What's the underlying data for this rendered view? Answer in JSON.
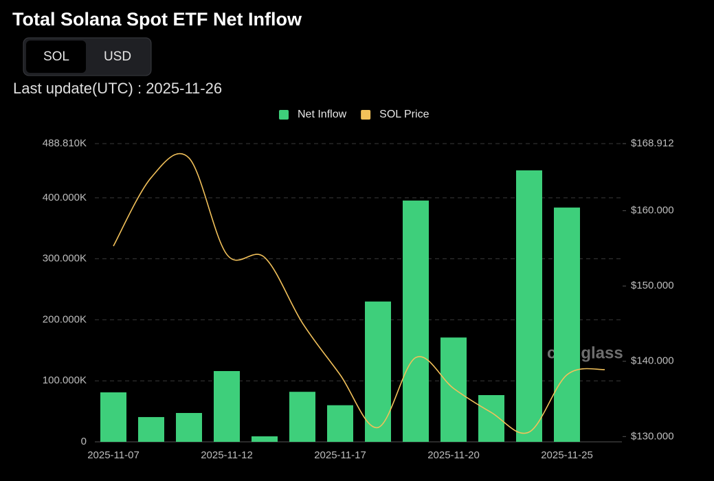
{
  "toggle": {
    "options": [
      "SOL",
      "USD"
    ],
    "selected": 0
  },
  "last_update": "Last update(UTC) : 2025-11-26",
  "chart_data": {
    "type": "bar",
    "title": "Total Solana Spot ETF Net Inflow",
    "watermark": "coinglass",
    "categories": [
      "2025-11-07",
      null,
      null,
      "2025-11-12",
      null,
      null,
      "2025-11-17",
      null,
      null,
      "2025-11-20",
      null,
      null,
      "2025-11-25",
      null
    ],
    "series": [
      {
        "name": "Net Inflow",
        "type": "bar",
        "color": "#3ecf7b",
        "values": [
          81100,
          40600,
          47300,
          116000,
          9000,
          82000,
          60000,
          230000,
          395500,
          171000,
          76600,
          445000,
          384000,
          null
        ]
      },
      {
        "name": "SOL Price",
        "type": "line",
        "axis": "y2",
        "color": "#f2c15a",
        "values": [
          155.3,
          164.4,
          167.0,
          154.2,
          153.8,
          145.1,
          138.2,
          131.2,
          140.5,
          136.4,
          133.2,
          130.6,
          138.2,
          138.9
        ]
      }
    ],
    "ylim": [
      0,
      488810
    ],
    "yticks": [
      0,
      {
        "value": 100000,
        "label": "100.000K"
      },
      {
        "value": 200000,
        "label": "200.000K"
      },
      {
        "value": 300000,
        "label": "300.000K"
      },
      {
        "value": 400000,
        "label": "400.000K"
      },
      {
        "value": 488810,
        "label": "488.810K"
      }
    ],
    "y2lim": [
      129.3,
      168.912
    ],
    "y2ticks": [
      {
        "value": 130,
        "label": "$130.000"
      },
      {
        "value": 140,
        "label": "$140.000"
      },
      {
        "value": 150,
        "label": "$150.000"
      },
      {
        "value": 160,
        "label": "$160.000"
      },
      {
        "value": 168.912,
        "label": "$168.912"
      }
    ],
    "grid": true,
    "legend": "top"
  }
}
